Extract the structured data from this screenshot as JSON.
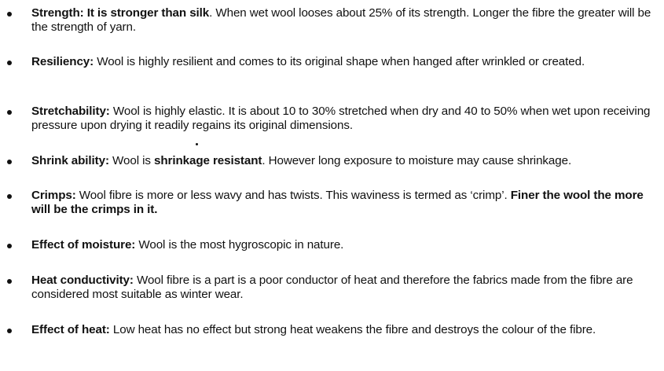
{
  "items": [
    {
      "label": "Strength:",
      "bold_lead": " It is stronger than silk",
      "text": ". When wet wool looses about 25% of its strength. Longer the fibre the greater will be the strength of yarn."
    },
    {
      "label": "Resiliency:",
      "text": " Wool is highly resilient and comes to its original shape when hanged after wrinkled or created."
    },
    {
      "label": "Stretchability:",
      "text": " Wool is highly elastic. It is about 10 to 30% stretched when dry and 40 to 50% when wet upon receiving pressure upon drying it readily regains its original dimensions."
    },
    {
      "label": "Shrink ability:",
      "text_before": " Wool is ",
      "bold_mid": "shrinkage resistant",
      "text_after": ". However long exposure to moisture may cause shrinkage."
    },
    {
      "label": "Crimps:",
      "text": " Wool fibre is more or less wavy and has twists. This waviness is termed as ‘crimp’. ",
      "bold_tail": "Finer the wool the more will be the crimps in it."
    },
    {
      "label": "Effect of moisture:",
      "text": " Wool is the most hygroscopic in nature."
    },
    {
      "label": "Heat conductivity:",
      "text": " Wool fibre is a part is a poor conductor of heat and therefore the fabrics made from the fibre are considered most suitable as winter wear."
    },
    {
      "label": "Effect of heat:",
      "text": " Low heat has no effect but strong heat weakens the fibre and destroys the colour of the fibre."
    }
  ]
}
